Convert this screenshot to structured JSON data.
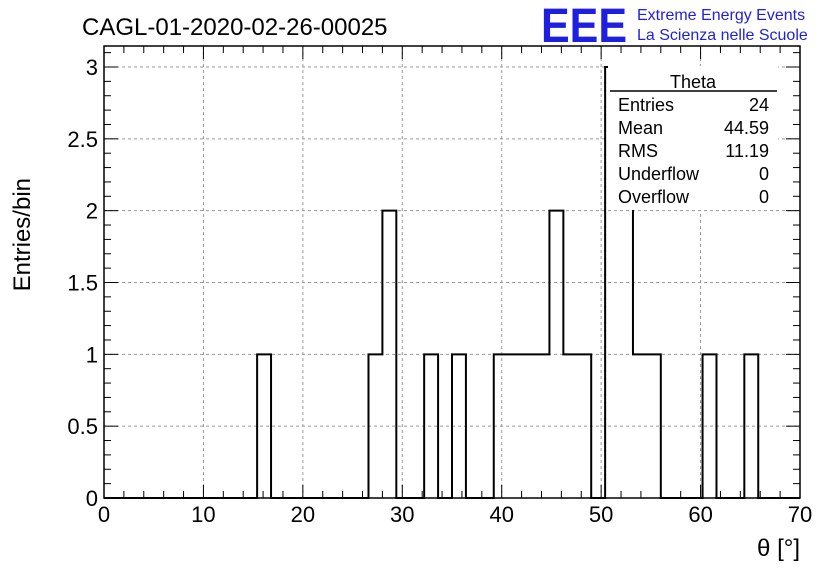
{
  "header": {
    "run_title": "CAGL-01-2020-02-26-00025",
    "logo_text": "EEE",
    "tagline_1": "Extreme Energy Events",
    "tagline_2": "La Scienza nelle Scuole",
    "logo_color": "#1f1fe0"
  },
  "stats_box": {
    "title": "Theta",
    "rows": [
      {
        "label": "Entries",
        "value": "24"
      },
      {
        "label": "Mean",
        "value": "44.59"
      },
      {
        "label": "RMS",
        "value": "11.19"
      },
      {
        "label": "Underflow",
        "value": "0"
      },
      {
        "label": "Overflow",
        "value": "0"
      }
    ]
  },
  "chart_data": {
    "type": "histogram",
    "xlabel": "θ [°]",
    "ylabel": "Entries/bin",
    "xlim": [
      0,
      70
    ],
    "ylim": [
      0,
      3.15
    ],
    "grid": true,
    "line_color": "#000000",
    "x_ticks": [
      0,
      10,
      20,
      30,
      40,
      50,
      60,
      70
    ],
    "y_ticks": [
      "0",
      "0.5",
      "1",
      "1.5",
      "2",
      "2.5",
      "3"
    ],
    "y_tick_values": [
      0,
      0.5,
      1,
      1.5,
      2,
      2.5,
      3
    ],
    "bins": [
      {
        "x0": 0,
        "x1": 15.4,
        "count": 0
      },
      {
        "x0": 15.4,
        "x1": 16.8,
        "count": 1
      },
      {
        "x0": 16.8,
        "x1": 26.6,
        "count": 0
      },
      {
        "x0": 26.6,
        "x1": 28.0,
        "count": 1
      },
      {
        "x0": 28.0,
        "x1": 29.4,
        "count": 2
      },
      {
        "x0": 29.4,
        "x1": 32.2,
        "count": 0
      },
      {
        "x0": 32.2,
        "x1": 33.6,
        "count": 1
      },
      {
        "x0": 33.6,
        "x1": 35.0,
        "count": 0
      },
      {
        "x0": 35.0,
        "x1": 36.4,
        "count": 1
      },
      {
        "x0": 36.4,
        "x1": 39.2,
        "count": 0
      },
      {
        "x0": 39.2,
        "x1": 44.8,
        "count": 1
      },
      {
        "x0": 44.8,
        "x1": 46.2,
        "count": 2
      },
      {
        "x0": 46.2,
        "x1": 49.0,
        "count": 1
      },
      {
        "x0": 49.0,
        "x1": 50.4,
        "count": 0
      },
      {
        "x0": 50.4,
        "x1": 53.2,
        "count": 3
      },
      {
        "x0": 53.2,
        "x1": 56.0,
        "count": 1
      },
      {
        "x0": 56.0,
        "x1": 60.2,
        "count": 0
      },
      {
        "x0": 60.2,
        "x1": 61.6,
        "count": 1
      },
      {
        "x0": 61.6,
        "x1": 64.4,
        "count": 0
      },
      {
        "x0": 64.4,
        "x1": 65.8,
        "count": 1
      },
      {
        "x0": 65.8,
        "x1": 70,
        "count": 0
      }
    ]
  }
}
